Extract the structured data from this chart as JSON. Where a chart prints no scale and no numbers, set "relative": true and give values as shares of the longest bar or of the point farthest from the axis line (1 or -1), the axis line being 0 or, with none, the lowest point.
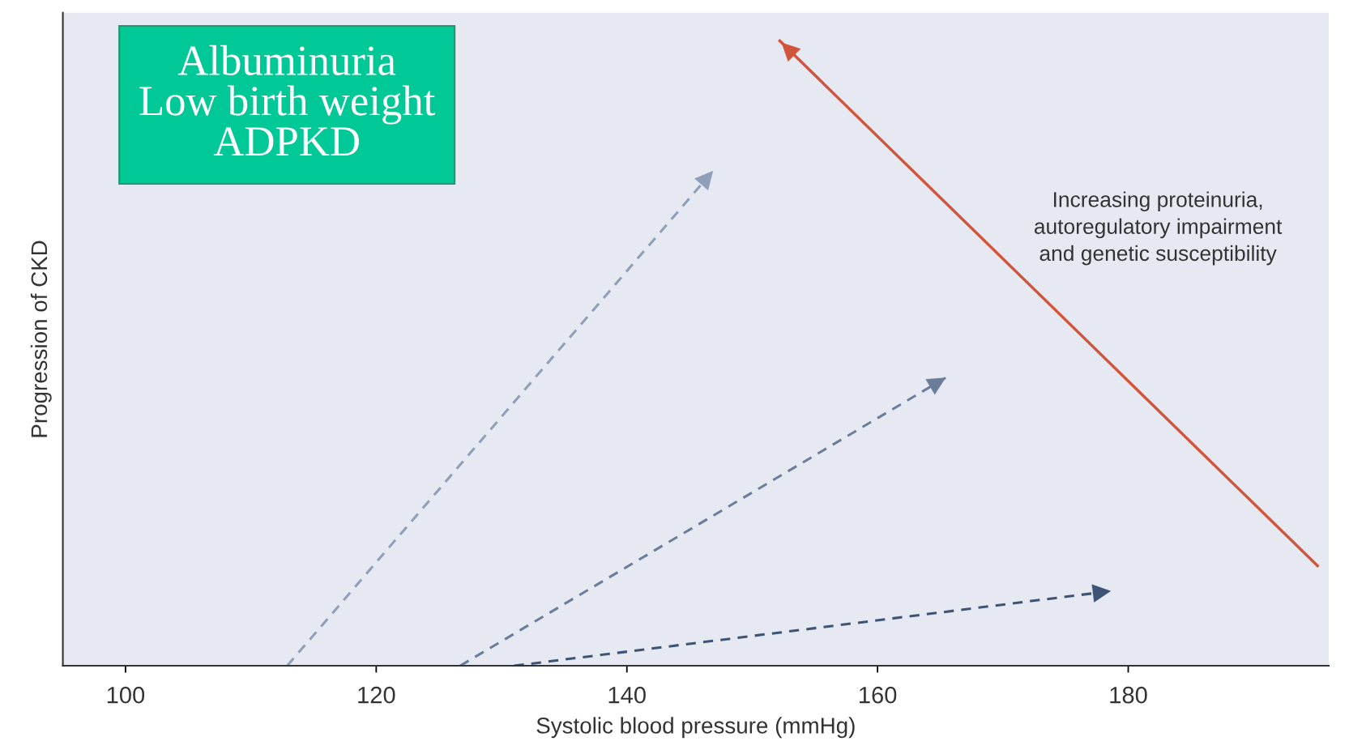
{
  "chart_data": {
    "type": "line",
    "relative": true,
    "xlabel": "Systolic blood pressure (mmHg)",
    "ylabel": "Progression of CKD",
    "xlim": [
      95,
      196
    ],
    "xticks": [
      100,
      120,
      140,
      160,
      180
    ],
    "grid": false,
    "legend": false,
    "marker": "none",
    "series": [
      {
        "x": [
          112.9,
          147.0
        ],
        "values": [
          0,
          0.795
        ],
        "color": "#8f9fb8",
        "line_style": "dashed"
      },
      {
        "x": [
          126.7,
          165.6
        ],
        "values": [
          0,
          0.463
        ],
        "color": "#6a7d9a",
        "line_style": "dashed"
      },
      {
        "x": [
          131.0,
          178.8
        ],
        "values": [
          0,
          0.12
        ],
        "color": "#3d5475",
        "line_style": "dashed"
      },
      {
        "x": [
          195.1,
          152.2
        ],
        "values": [
          0.16,
          1
        ],
        "color": "#d0553a",
        "line_style": "solid"
      }
    ],
    "annotations": [
      "Albuminuria\nLow birth weight\nADPKD",
      "Increasing proteinuria,\nautoregulatory impairment\nand genetic susceptibility"
    ]
  }
}
